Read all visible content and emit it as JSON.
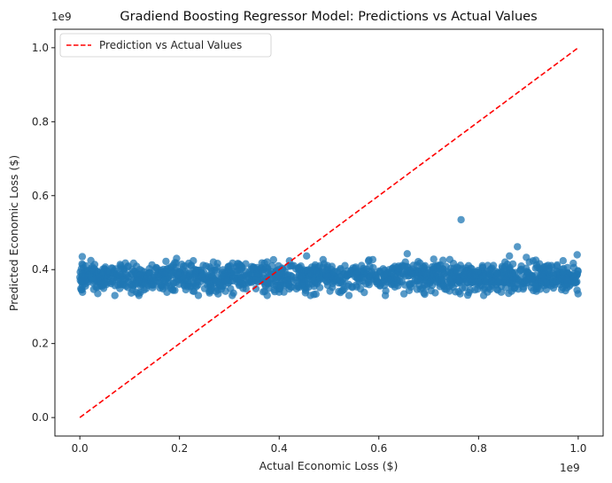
{
  "chart_data": {
    "type": "scatter",
    "title": "Gradiend Boosting Regressor Model: Predictions vs Actual Values",
    "xlabel": "Actual Economic Loss ($)",
    "ylabel": "Predicted Economic Loss ($)",
    "x_offset_text": "1e9",
    "y_offset_text": "1e9",
    "xlim": [
      -0.05,
      1.05
    ],
    "ylim": [
      -0.05,
      1.05
    ],
    "xticks": [
      0.0,
      0.2,
      0.4,
      0.6,
      0.8,
      1.0
    ],
    "xtick_labels": [
      "0.0",
      "0.2",
      "0.4",
      "0.6",
      "0.8",
      "1.0"
    ],
    "yticks": [
      0.0,
      0.2,
      0.4,
      0.6,
      0.8,
      1.0
    ],
    "ytick_labels": [
      "0.0",
      "0.2",
      "0.4",
      "0.6",
      "0.8",
      "1.0"
    ],
    "grid": false,
    "legend": {
      "position": "top-left",
      "entries": [
        "Prediction vs Actual Values"
      ]
    },
    "reference_line": {
      "name": "Prediction vs Actual Values",
      "style": "dashed",
      "color": "#ff0000",
      "x": [
        0.0,
        1.0
      ],
      "y": [
        0.0,
        1.0
      ]
    },
    "scatter_series": {
      "color": "#1f77b4",
      "alpha": 0.75,
      "x_range": [
        0.0,
        1.0
      ],
      "y_center": 0.38,
      "y_spread": 0.02,
      "y_min": 0.33,
      "y_max": 0.44,
      "outliers": [
        {
          "x": 0.765,
          "y": 0.535
        },
        {
          "x": 0.878,
          "y": 0.462
        },
        {
          "x": 0.862,
          "y": 0.437
        },
        {
          "x": 0.657,
          "y": 0.443
        },
        {
          "x": 0.005,
          "y": 0.435
        },
        {
          "x": 0.455,
          "y": 0.437
        },
        {
          "x": 0.998,
          "y": 0.44
        }
      ]
    }
  }
}
